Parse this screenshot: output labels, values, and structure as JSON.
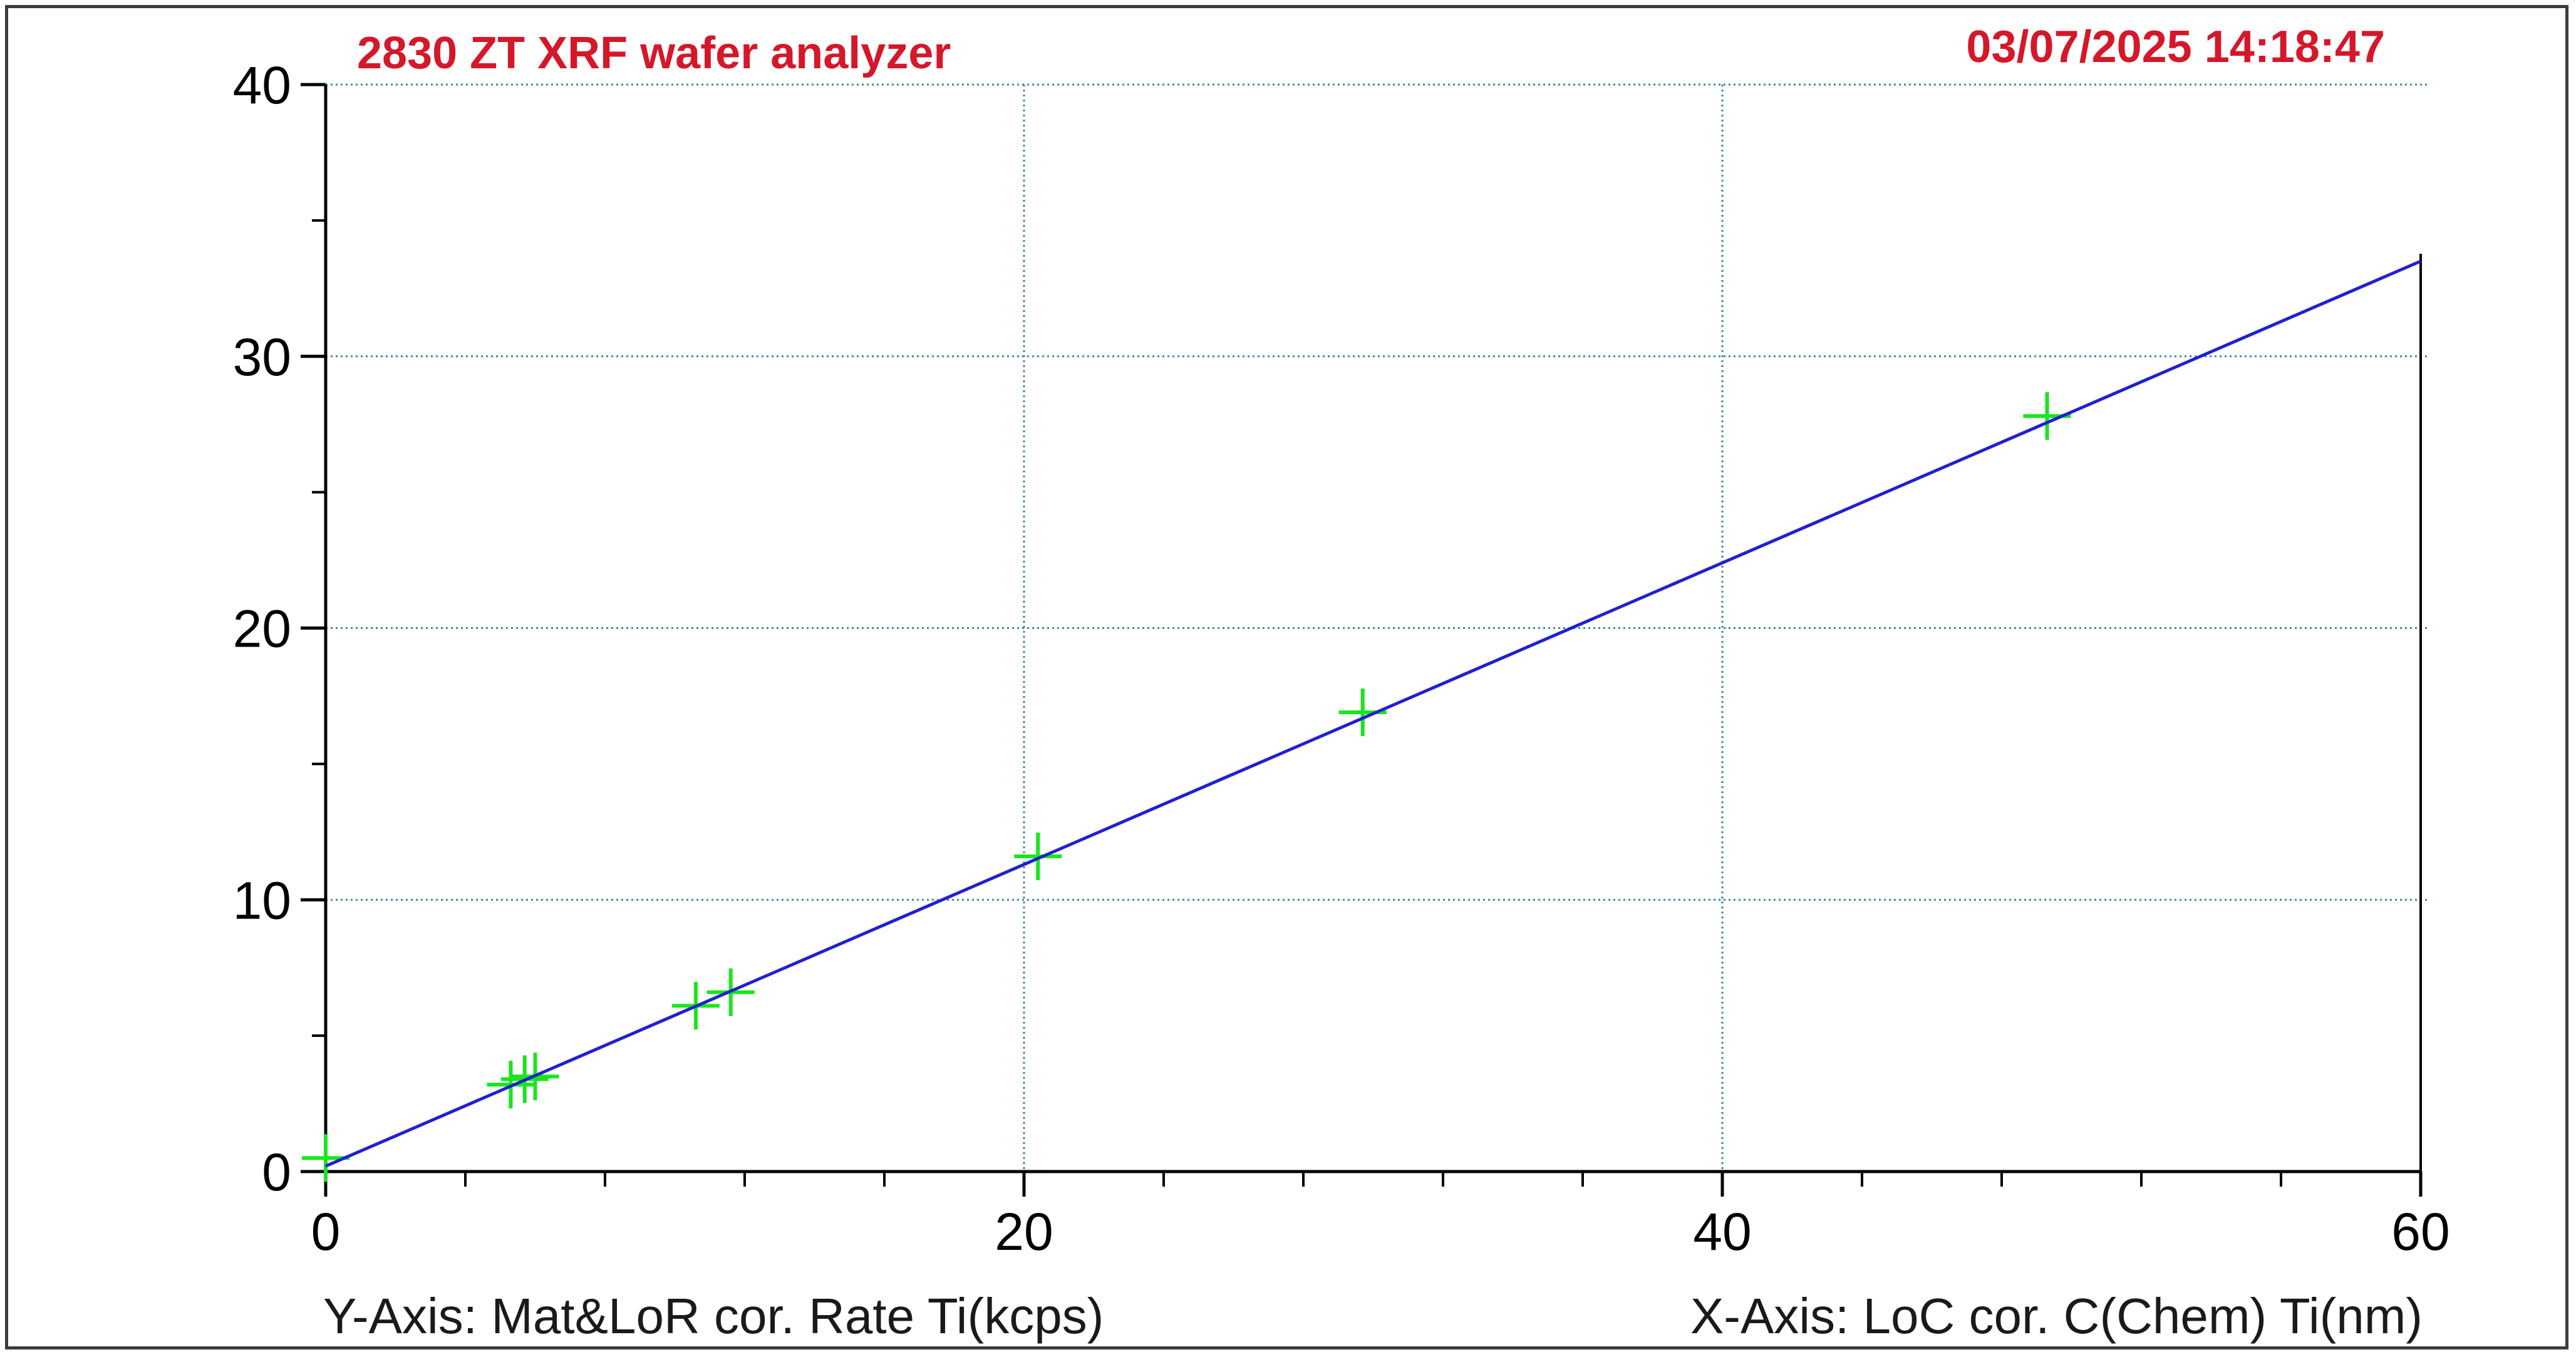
{
  "header": {
    "title": "2830 ZT XRF wafer analyzer",
    "timestamp": "03/07/2025 14:18:47",
    "color": "#d4182a"
  },
  "axes": {
    "y_caption": "Y-Axis: Mat&LoR cor. Rate Ti(kcps)",
    "x_caption": "X-Axis: LoC cor. C(Chem) Ti(nm)"
  },
  "chart_data": {
    "type": "scatter",
    "xlim": [
      0,
      60
    ],
    "ylim": [
      0,
      40
    ],
    "x_ticks": [
      0,
      20,
      40,
      60
    ],
    "y_ticks": [
      0,
      10,
      20,
      30,
      40
    ],
    "x_tick_labels": [
      "0",
      "20",
      "40",
      "60"
    ],
    "y_tick_labels": [
      "0",
      "10",
      "20",
      "30",
      "40"
    ],
    "x_minor_step": 4,
    "y_minor_step": 5,
    "grid": true,
    "grid_color": "#3a8aa8",
    "series": [
      {
        "type": "scatter",
        "marker": "plus",
        "color": "#19e61d",
        "points": [
          {
            "x": 0,
            "y": 0.5
          },
          {
            "x": 5.3,
            "y": 3.2
          },
          {
            "x": 5.7,
            "y": 3.4
          },
          {
            "x": 6.0,
            "y": 3.5
          },
          {
            "x": 10.6,
            "y": 6.1
          },
          {
            "x": 11.6,
            "y": 6.6
          },
          {
            "x": 20.4,
            "y": 11.6
          },
          {
            "x": 29.7,
            "y": 16.9
          },
          {
            "x": 49.3,
            "y": 27.8
          }
        ]
      },
      {
        "type": "line",
        "color": "#2020d0",
        "points": [
          {
            "x": 0,
            "y": 0.2
          },
          {
            "x": 60,
            "y": 33.5
          }
        ]
      }
    ]
  }
}
